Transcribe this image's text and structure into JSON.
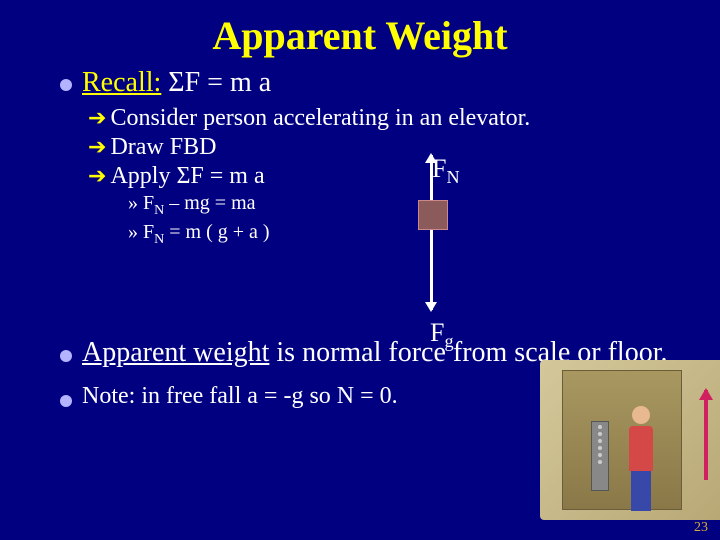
{
  "title": "Apparent Weight",
  "recall": {
    "label": "Recall:",
    "equation": " ΣF = m a"
  },
  "sub": {
    "line1": "Consider person accelerating in an elevator.",
    "line2": "Draw FBD",
    "line3": "Apply ΣF = m a"
  },
  "eq": {
    "line1_a": "» F",
    "line1_b": " – mg = ma",
    "line2_a": "» F",
    "line2_b": " = m ( g + a )",
    "sub_n": "N"
  },
  "fbd": {
    "fn_F": "F",
    "fn_sub": "N",
    "fg_F": "F",
    "fg_sub": "g"
  },
  "apparent": {
    "underlined": "Apparent weight",
    "rest": " is normal force from scale or floor."
  },
  "note": "Note: in free fall  a = -g so N = 0.",
  "pagenum": "23",
  "colors": {
    "bg": "#000080",
    "title": "#ffff00",
    "text": "#ffffff",
    "bullet": "#b3b3ff",
    "arrow": "#ffff00"
  }
}
